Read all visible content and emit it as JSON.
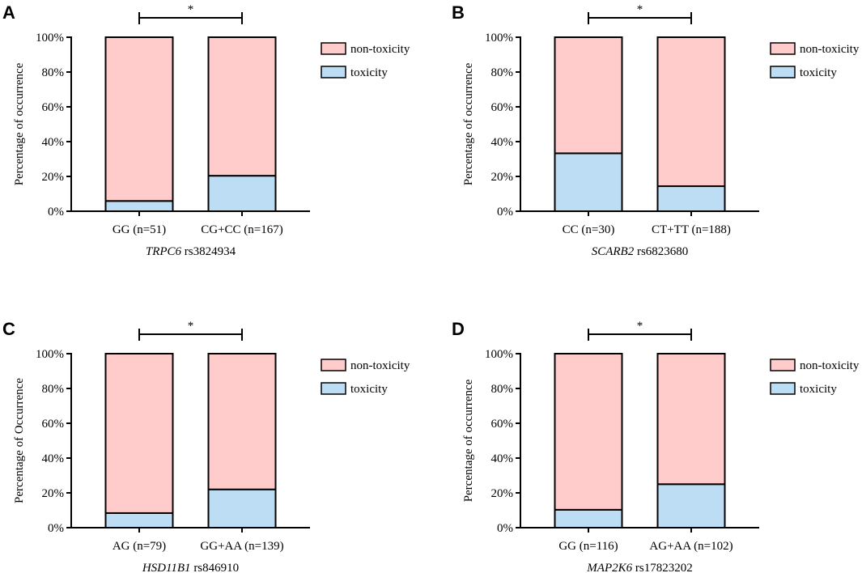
{
  "chart_data": [
    {
      "panel": "A",
      "type": "bar",
      "stacked": true,
      "legend_position": "right",
      "categories": [
        "GG (n=51)",
        "CG+CC (n=167)"
      ],
      "series": [
        {
          "name": "non-toxicity",
          "color": "#FFCBCB",
          "values": [
            94.1,
            79.6
          ]
        },
        {
          "name": "toxicity",
          "color": "#BDDDF5",
          "values": [
            5.9,
            20.4
          ]
        }
      ],
      "ylabel": "Percentage of occurrence",
      "xlabel": {
        "gene": "TRPC6",
        "snp": "rs3824934"
      },
      "ylim": [
        0,
        100
      ],
      "yticks": [
        0,
        20,
        40,
        60,
        80,
        100
      ],
      "ytick_labels": [
        "0%",
        "20%",
        "40%",
        "60%",
        "80%",
        "100%"
      ],
      "significance": "*"
    },
    {
      "panel": "B",
      "type": "bar",
      "stacked": true,
      "legend_position": "right",
      "categories": [
        "CC (n=30)",
        "CT+TT (n=188)"
      ],
      "series": [
        {
          "name": "non-toxicity",
          "color": "#FFCBCB",
          "values": [
            66.7,
            85.6
          ]
        },
        {
          "name": "toxicity",
          "color": "#BDDDF5",
          "values": [
            33.3,
            14.4
          ]
        }
      ],
      "ylabel": "Percentage of occurrence",
      "xlabel": {
        "gene": "SCARB2",
        "snp": "rs6823680"
      },
      "ylim": [
        0,
        100
      ],
      "yticks": [
        0,
        20,
        40,
        60,
        80,
        100
      ],
      "ytick_labels": [
        "0%",
        "20%",
        "40%",
        "60%",
        "80%",
        "100%"
      ],
      "significance": "*"
    },
    {
      "panel": "C",
      "type": "bar",
      "stacked": true,
      "legend_position": "right",
      "categories": [
        "AG (n=79)",
        "GG+AA (n=139)"
      ],
      "series": [
        {
          "name": "non-toxicity",
          "color": "#FFCBCB",
          "values": [
            91.6,
            78.0
          ]
        },
        {
          "name": "toxicity",
          "color": "#BDDDF5",
          "values": [
            8.4,
            22.0
          ]
        }
      ],
      "ylabel": "Percentage of Occurrence",
      "xlabel": {
        "gene": "HSD11B1",
        "snp": "rs846910"
      },
      "ylim": [
        0,
        100
      ],
      "yticks": [
        0,
        20,
        40,
        60,
        80,
        100
      ],
      "ytick_labels": [
        "0%",
        "20%",
        "40%",
        "60%",
        "80%",
        "100%"
      ],
      "significance": "*"
    },
    {
      "panel": "D",
      "type": "bar",
      "stacked": true,
      "legend_position": "right",
      "categories": [
        "GG (n=116)",
        "AG+AA (n=102)"
      ],
      "series": [
        {
          "name": "non-toxicity",
          "color": "#FFCBCB",
          "values": [
            89.7,
            75.0
          ]
        },
        {
          "name": "toxicity",
          "color": "#BDDDF5",
          "values": [
            10.3,
            25.0
          ]
        }
      ],
      "ylabel": "Percentage of occurrence",
      "xlabel": {
        "gene": "MAP2K6",
        "snp": "rs17823202"
      },
      "ylim": [
        0,
        100
      ],
      "yticks": [
        0,
        20,
        40,
        60,
        80,
        100
      ],
      "ytick_labels": [
        "0%",
        "20%",
        "40%",
        "60%",
        "80%",
        "100%"
      ],
      "significance": "*"
    }
  ]
}
